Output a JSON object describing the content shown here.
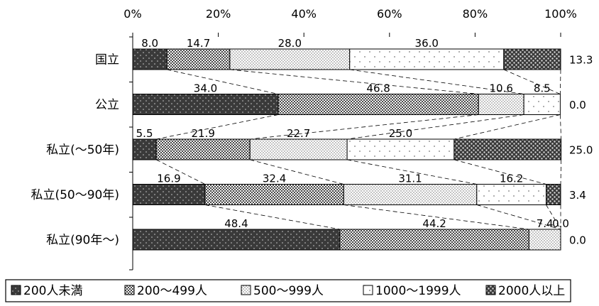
{
  "chart_data": {
    "type": "bar",
    "stacked": true,
    "orientation": "horizontal",
    "normalized_100": true,
    "xlim": [
      0,
      100
    ],
    "x_ticks": [
      "0%",
      "20%",
      "40%",
      "60%",
      "80%",
      "100%"
    ],
    "categories": [
      "国立",
      "公立",
      "私立(～50年)",
      "私立(50～90年)",
      "私立(90年～)"
    ],
    "series": [
      {
        "name": "200人未満",
        "values": [
          8.0,
          34.0,
          5.5,
          16.9,
          48.4
        ],
        "labels": [
          "8.0",
          "34.0",
          "5.5",
          "16.9",
          "48.4"
        ],
        "color": "#3a3a3a"
      },
      {
        "name": "200～499人",
        "values": [
          14.7,
          46.8,
          21.9,
          32.4,
          44.2
        ],
        "labels": [
          "14.7",
          "46.8",
          "21.9",
          "32.4",
          "44.2"
        ],
        "color": "#8a8a8a"
      },
      {
        "name": "500～999人",
        "values": [
          28.0,
          10.6,
          22.7,
          31.1,
          7.4
        ],
        "labels": [
          "28.0",
          "10.6",
          "22.7",
          "31.1",
          "7.4"
        ],
        "color": "#dcdcdc"
      },
      {
        "name": "1000～1999人",
        "values": [
          36.0,
          8.5,
          25.0,
          16.2,
          0.0
        ],
        "labels": [
          "36.0",
          "8.5",
          "25.0",
          "16.2",
          "0.0"
        ],
        "color": "#ffffff"
      },
      {
        "name": "2000人以上",
        "values": [
          13.3,
          0.0,
          25.0,
          3.4,
          0.0
        ],
        "labels": [
          "13.3",
          "0.0",
          "25.0",
          "3.4",
          "0.0"
        ],
        "color": "#4a4a4a"
      }
    ],
    "series_lines": true,
    "legend_position": "bottom",
    "grid": false
  }
}
